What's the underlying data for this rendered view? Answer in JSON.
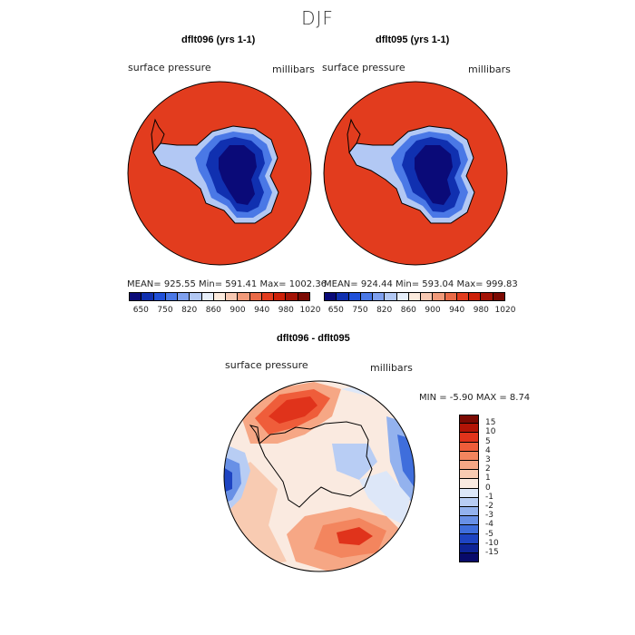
{
  "season": "DJF",
  "panel1": {
    "title": "dflt096 (yrs 1-1)",
    "field": "surface pressure",
    "units": "millibars",
    "stats": "MEAN=  925.55   Min=  591.41   Max= 1002.36"
  },
  "panel2": {
    "title": "dflt095 (yrs 1-1)",
    "field": "surface pressure",
    "units": "millibars",
    "stats": "MEAN=  924.44   Min=  593.04   Max=  999.83"
  },
  "diff": {
    "title": "dflt096 - dflt095",
    "field": "surface pressure",
    "units": "millibars",
    "stats": "MIN =   -5.90  MAX =    8.74"
  },
  "colorbar": {
    "ticks": [
      "650",
      "750",
      "820",
      "860",
      "900",
      "940",
      "980",
      "1020"
    ],
    "colors": [
      "#0a0a78",
      "#1030b0",
      "#2050d8",
      "#4a78e6",
      "#7fa0ee",
      "#b2c8f4",
      "#e6eefa",
      "#fbeadd",
      "#f7c8b2",
      "#f19a7a",
      "#ea6a47",
      "#e23c1e",
      "#cd2008",
      "#a41306",
      "#7c0a03"
    ]
  },
  "diffbar": {
    "labels": [
      "15",
      "10",
      "5",
      "4",
      "3",
      "2",
      "1",
      "0",
      "-1",
      "-2",
      "-3",
      "-4",
      "-5",
      "-10",
      "-15"
    ],
    "colors": [
      "#7c0a03",
      "#b21406",
      "#e0331b",
      "#ef5d3a",
      "#f3855e",
      "#f6a785",
      "#f8cbb2",
      "#faeae0",
      "#dde7f8",
      "#b8cdf4",
      "#93b2ee",
      "#6890e6",
      "#3f6edc",
      "#1e44c2",
      "#0e2496",
      "#080a6a"
    ]
  }
}
